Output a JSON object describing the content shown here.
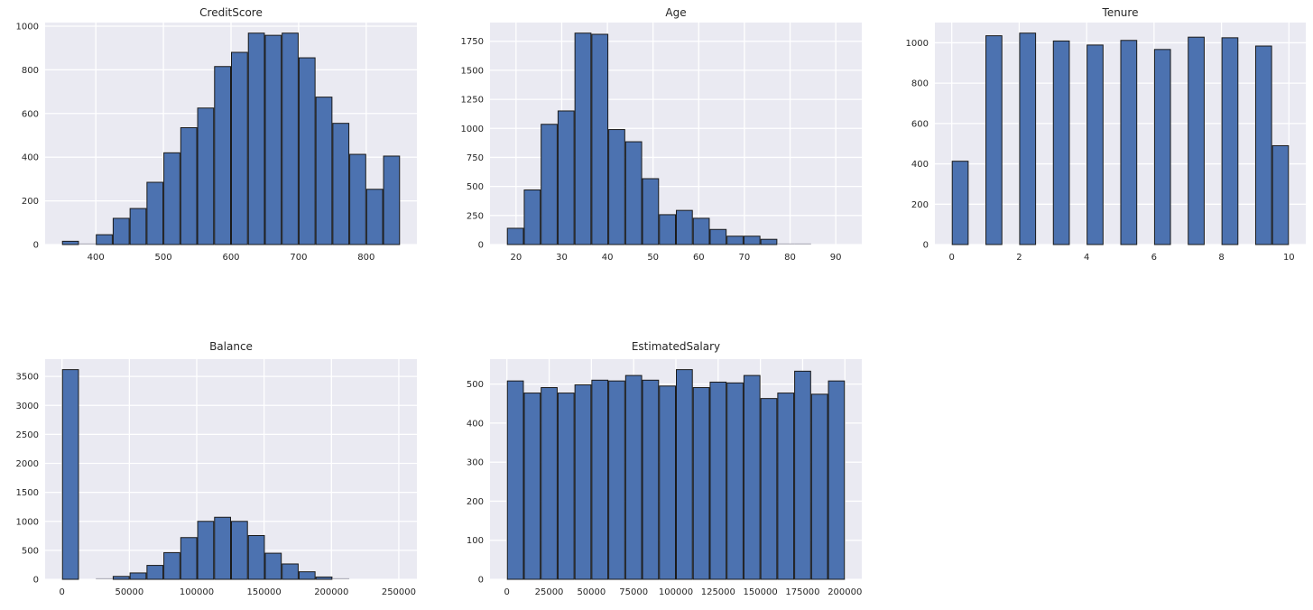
{
  "style": {
    "bar_fill": "#4c72b0",
    "bar_edge": "#1a1a1a",
    "plot_bg": "#eaeaf2",
    "grid_color": "#ffffff",
    "text_color": "#262626",
    "figure_bg": "#ffffff",
    "tiny_bar_color": "#b2b2bc"
  },
  "chart_data": [
    {
      "type": "bar",
      "subtype": "histogram",
      "title": "CreditScore",
      "xlabel": "",
      "ylabel": "",
      "grid": true,
      "legend": null,
      "bin_start": 350,
      "bin_end": 850,
      "values": [
        15,
        5,
        45,
        120,
        165,
        285,
        420,
        535,
        625,
        815,
        880,
        968,
        958,
        968,
        855,
        675,
        555,
        413,
        253,
        405
      ],
      "xlim": [
        325,
        875
      ],
      "ylim": [
        0,
        1016.4
      ],
      "xticks": [
        400,
        500,
        600,
        700,
        800
      ],
      "xtick_labels": [
        "400",
        "500",
        "600",
        "700",
        "800"
      ],
      "yticks": [
        0,
        200,
        400,
        600,
        800,
        1000
      ],
      "ytick_labels": [
        "0",
        "200",
        "400",
        "600",
        "800",
        "1000"
      ]
    },
    {
      "type": "bar",
      "subtype": "histogram",
      "title": "Age",
      "xlabel": "",
      "ylabel": "",
      "grid": true,
      "legend": null,
      "bin_start": 18,
      "bin_end": 92,
      "values": [
        140,
        470,
        1035,
        1150,
        1820,
        1810,
        990,
        885,
        567,
        257,
        294,
        226,
        130,
        72,
        72,
        45,
        10,
        8,
        2,
        2
      ],
      "xlim": [
        14.3,
        95.7
      ],
      "ylim": [
        0,
        1911
      ],
      "xticks": [
        20,
        30,
        40,
        50,
        60,
        70,
        80,
        90
      ],
      "xtick_labels": [
        "20",
        "30",
        "40",
        "50",
        "60",
        "70",
        "80",
        "90"
      ],
      "yticks": [
        0,
        250,
        500,
        750,
        1000,
        1250,
        1500,
        1750
      ],
      "ytick_labels": [
        "0",
        "250",
        "500",
        "750",
        "1000",
        "1250",
        "1500",
        "1750"
      ]
    },
    {
      "type": "bar",
      "subtype": "histogram",
      "title": "Tenure",
      "xlabel": "",
      "ylabel": "",
      "grid": true,
      "legend": null,
      "bin_start": 0,
      "bin_end": 10,
      "values": [
        413,
        0,
        1035,
        0,
        1048,
        0,
        1009,
        0,
        989,
        0,
        1012,
        0,
        967,
        0,
        1028,
        0,
        1025,
        0,
        984,
        490
      ],
      "xlim": [
        -0.5,
        10.5
      ],
      "ylim": [
        0,
        1100.4
      ],
      "xticks": [
        0,
        2,
        4,
        6,
        8,
        10
      ],
      "xtick_labels": [
        "0",
        "2",
        "4",
        "6",
        "8",
        "10"
      ],
      "yticks": [
        0,
        200,
        400,
        600,
        800,
        1000
      ],
      "ytick_labels": [
        "0",
        "200",
        "400",
        "600",
        "800",
        "1000"
      ]
    },
    {
      "type": "bar",
      "subtype": "histogram",
      "title": "Balance",
      "xlabel": "",
      "ylabel": "",
      "grid": true,
      "legend": null,
      "bin_start": 0,
      "bin_end": 250898,
      "values": [
        3617,
        0,
        14,
        50,
        110,
        240,
        460,
        720,
        1000,
        1070,
        1000,
        755,
        450,
        265,
        130,
        40,
        12,
        2,
        0,
        1
      ],
      "xlim": [
        -12545,
        263443
      ],
      "ylim": [
        0,
        3797.9
      ],
      "xticks": [
        0,
        50000,
        100000,
        150000,
        200000,
        250000
      ],
      "xtick_labels": [
        "0",
        "50000",
        "100000",
        "150000",
        "200000",
        "250000"
      ],
      "yticks": [
        0,
        500,
        1000,
        1500,
        2000,
        2500,
        3000,
        3500
      ],
      "ytick_labels": [
        "0",
        "500",
        "1000",
        "1500",
        "2000",
        "2500",
        "3000",
        "3500"
      ]
    },
    {
      "type": "bar",
      "subtype": "histogram",
      "title": "EstimatedSalary",
      "xlabel": "",
      "ylabel": "",
      "grid": true,
      "legend": null,
      "bin_start": 12,
      "bin_end": 199992,
      "values": [
        508,
        477,
        491,
        477,
        498,
        510,
        508,
        522,
        510,
        495,
        537,
        491,
        505,
        503,
        522,
        463,
        477,
        533,
        474,
        508
      ],
      "xlim": [
        -9987,
        209991
      ],
      "ylim": [
        0,
        563.85
      ],
      "xticks": [
        0,
        25000,
        50000,
        75000,
        100000,
        125000,
        150000,
        175000,
        200000
      ],
      "xtick_labels": [
        "0",
        "25000",
        "50000",
        "75000",
        "100000",
        "125000",
        "150000",
        "175000",
        "200000"
      ],
      "yticks": [
        0,
        100,
        200,
        300,
        400,
        500
      ],
      "ytick_labels": [
        "0",
        "100",
        "200",
        "300",
        "400",
        "500"
      ]
    }
  ]
}
